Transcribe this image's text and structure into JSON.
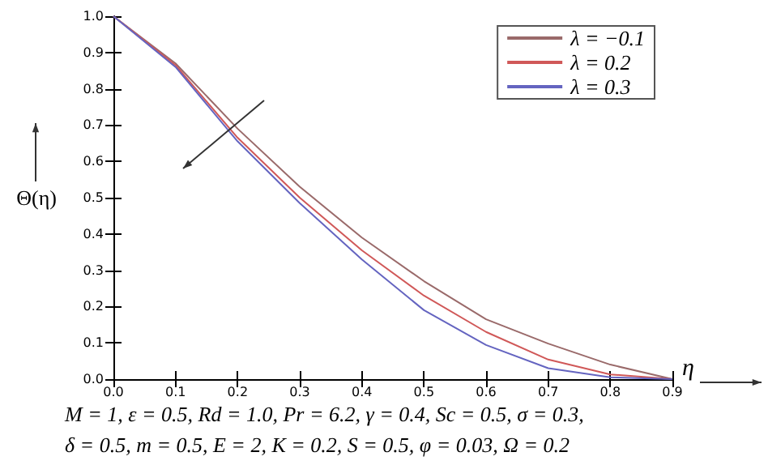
{
  "chart_data": {
    "type": "line",
    "xlabel": "η",
    "ylabel": "Θ(η)",
    "x": [
      0,
      0.1,
      0.2,
      0.3,
      0.4,
      0.5,
      0.6,
      0.7,
      0.8,
      0.9
    ],
    "series": [
      {
        "name": "λ = −0.1",
        "color": "#9a6a6a",
        "values": [
          1,
          0.87,
          0.69,
          0.53,
          0.39,
          0.27,
          0.165,
          0.098,
          0.04,
          0
        ]
      },
      {
        "name": "λ = 0.2",
        "color": "#d05858",
        "values": [
          1,
          0.865,
          0.665,
          0.5,
          0.355,
          0.23,
          0.13,
          0.054,
          0.013,
          0
        ]
      },
      {
        "name": "λ = 0.3",
        "color": "#6464c0",
        "values": [
          1,
          0.86,
          0.655,
          0.485,
          0.33,
          0.19,
          0.094,
          0.03,
          0.005,
          0
        ]
      }
    ],
    "xlim": [
      0,
      0.9
    ],
    "xticks": [
      {
        "value": 0,
        "label": "0.0"
      },
      0.1,
      0.2,
      0.3,
      0.4,
      0.5,
      0.6,
      0.7,
      0.8,
      0.9
    ],
    "ylim": [
      0,
      1
    ],
    "yticks": [
      {
        "value": 0,
        "label": "0.0"
      },
      0.1,
      0.2,
      0.3,
      0.4,
      0.5,
      0.6,
      0.7,
      0.8,
      0.9,
      {
        "value": 1,
        "label": "1.0"
      }
    ],
    "legend": "top right",
    "grid": false,
    "marker": "none",
    "line_style": "solid",
    "annotations": [
      "M = 1, ε = 0.5, Rd = 1.0, Pr = 6.2, γ = 0.4, Sc = 0.5, σ = 0.3,",
      "δ = 0.5, m = 0.5, E = 2, K = 0.2, S = 0.5, φ = 0.03, Ω = 0.2"
    ]
  }
}
